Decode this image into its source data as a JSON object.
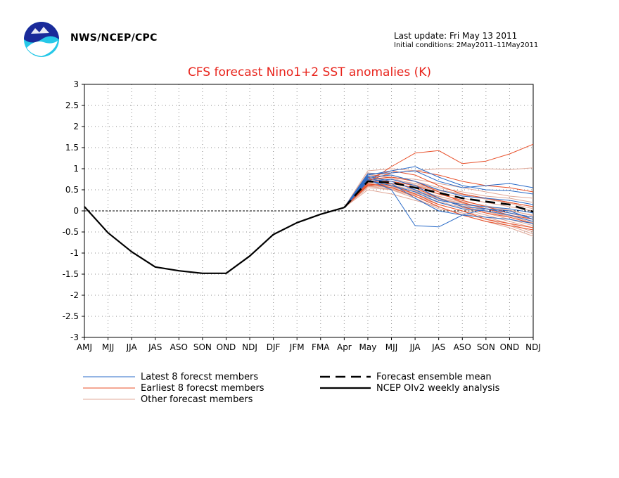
{
  "header": {
    "org": "NWS/NCEP/CPC",
    "last_update": "Last update: Fri May 13 2011",
    "initial_conditions": "Initial conditions: 2May2011–11May2011"
  },
  "colors": {
    "title": "#e8241c",
    "latest": "#2a6bc8",
    "earliest": "#e8502a",
    "other": "#e0a898",
    "analysis": "#000000",
    "grid": "#888888"
  },
  "chart_data": {
    "type": "line",
    "title": "CFS forecast Nino1+2 SST anomalies (K)",
    "categories": [
      "AMJ",
      "MJJ",
      "JJA",
      "JAS",
      "ASO",
      "SON",
      "OND",
      "NDJ",
      "DJF",
      "JFM",
      "FMA",
      "Apr",
      "May",
      "MJJ",
      "JJA",
      "JAS",
      "ASO",
      "SON",
      "OND",
      "NDJ"
    ],
    "ylim": [
      -3,
      3
    ],
    "yticks": [
      3,
      2.5,
      2,
      1.5,
      1,
      0.5,
      0,
      -0.5,
      -1,
      -1.5,
      -2,
      -2.5,
      -3
    ],
    "grid": true,
    "legend": [
      {
        "label": "Latest 8 forecst members",
        "kind": "latest"
      },
      {
        "label": "Earliest 8 forecst members",
        "kind": "earliest"
      },
      {
        "label": "Other forecast members",
        "kind": "other"
      },
      {
        "label": "Forecast ensemble mean",
        "kind": "mean"
      },
      {
        "label": "NCEP OIv2 weekly analysis",
        "kind": "analysis"
      }
    ],
    "analysis": {
      "x": [
        0,
        1,
        2,
        3,
        4,
        5,
        6,
        7,
        8,
        9,
        10,
        11
      ],
      "values": [
        0.1,
        -0.52,
        -0.97,
        -1.33,
        -1.42,
        -1.48,
        -1.48,
        -1.07,
        -0.56,
        -0.28,
        -0.08,
        0.08
      ]
    },
    "ensemble_mean": {
      "x": [
        11,
        12,
        13,
        14,
        15,
        16,
        17,
        18,
        19
      ],
      "values": [
        0.08,
        0.7,
        0.67,
        0.55,
        0.43,
        0.3,
        0.22,
        0.15,
        -0.02
      ]
    },
    "latest_members": [
      [
        0.08,
        0.85,
        0.95,
        1.05,
        0.8,
        0.6,
        0.5,
        0.48,
        0.4
      ],
      [
        0.08,
        0.8,
        0.85,
        0.7,
        0.5,
        0.35,
        0.3,
        0.25,
        0.15
      ],
      [
        0.08,
        0.75,
        0.5,
        -0.35,
        -0.38,
        -0.1,
        0.05,
        0.0,
        -0.2
      ],
      [
        0.08,
        0.7,
        0.75,
        0.6,
        0.3,
        0.1,
        0.05,
        -0.05,
        -0.15
      ],
      [
        0.08,
        0.78,
        0.65,
        0.3,
        0.0,
        -0.1,
        -0.15,
        -0.2,
        -0.3
      ],
      [
        0.08,
        0.88,
        0.9,
        0.95,
        0.7,
        0.55,
        0.6,
        0.65,
        0.55
      ],
      [
        0.08,
        0.72,
        0.6,
        0.45,
        0.2,
        0.05,
        0.0,
        -0.1,
        -0.25
      ],
      [
        0.08,
        0.82,
        0.7,
        0.5,
        0.25,
        0.15,
        0.1,
        0.05,
        -0.05
      ]
    ],
    "earliest_members": [
      [
        0.08,
        0.68,
        1.05,
        1.37,
        1.43,
        1.12,
        1.18,
        1.35,
        1.58
      ],
      [
        0.08,
        0.72,
        0.9,
        0.95,
        0.85,
        0.7,
        0.6,
        0.55,
        0.45
      ],
      [
        0.08,
        0.6,
        0.65,
        0.55,
        0.3,
        0.1,
        -0.05,
        -0.15,
        -0.3
      ],
      [
        0.08,
        0.75,
        0.8,
        0.7,
        0.45,
        0.2,
        0.05,
        -0.1,
        -0.2
      ],
      [
        0.08,
        0.65,
        0.55,
        0.35,
        0.1,
        -0.1,
        -0.25,
        -0.35,
        -0.45
      ],
      [
        0.08,
        0.7,
        0.7,
        0.6,
        0.4,
        0.25,
        0.1,
        -0.05,
        -0.15
      ],
      [
        0.08,
        0.62,
        0.6,
        0.4,
        0.15,
        0.0,
        -0.2,
        -0.3,
        -0.4
      ],
      [
        0.08,
        0.78,
        0.95,
        0.85,
        0.6,
        0.4,
        0.3,
        0.2,
        0.1
      ]
    ],
    "other_members": [
      [
        0.08,
        0.95,
        1.0,
        0.95,
        1.0,
        1.0,
        1.0,
        0.98,
        1.02
      ],
      [
        0.08,
        0.8,
        0.75,
        0.65,
        0.5,
        0.4,
        0.3,
        0.2,
        0.1
      ],
      [
        0.08,
        0.7,
        0.6,
        0.45,
        0.3,
        0.15,
        0.0,
        -0.15,
        -0.3
      ],
      [
        0.08,
        0.6,
        0.55,
        0.4,
        0.2,
        0.05,
        -0.1,
        -0.25,
        -0.4
      ],
      [
        0.08,
        0.5,
        0.4,
        0.25,
        0.1,
        -0.1,
        -0.25,
        -0.4,
        -0.6
      ],
      [
        0.08,
        0.9,
        0.85,
        0.7,
        0.55,
        0.45,
        0.35,
        0.3,
        0.2
      ],
      [
        0.08,
        0.75,
        0.7,
        0.6,
        0.45,
        0.3,
        0.2,
        0.1,
        0.0
      ],
      [
        0.08,
        0.65,
        0.6,
        0.5,
        0.35,
        0.2,
        0.05,
        -0.05,
        -0.2
      ],
      [
        0.08,
        0.55,
        0.5,
        0.35,
        0.15,
        0.0,
        -0.15,
        -0.3,
        -0.5
      ],
      [
        0.08,
        0.85,
        0.8,
        0.75,
        0.65,
        0.55,
        0.45,
        0.35,
        0.3
      ],
      [
        0.08,
        0.7,
        0.65,
        0.55,
        0.4,
        0.25,
        0.1,
        0.0,
        -0.1
      ],
      [
        0.08,
        0.6,
        0.5,
        0.3,
        0.05,
        -0.05,
        -0.2,
        -0.35,
        -0.55
      ],
      [
        0.08,
        0.78,
        0.7,
        0.6,
        0.5,
        0.4,
        0.3,
        0.2,
        0.1
      ],
      [
        0.08,
        0.68,
        0.62,
        0.48,
        0.3,
        0.18,
        0.05,
        -0.1,
        -0.25
      ],
      [
        0.08,
        0.58,
        0.52,
        0.38,
        0.22,
        0.08,
        -0.05,
        -0.2,
        -0.35
      ],
      [
        0.08,
        0.88,
        0.78,
        0.62,
        0.48,
        0.38,
        0.28,
        0.18,
        0.05
      ],
      [
        0.08,
        0.72,
        0.58,
        0.42,
        0.28,
        0.12,
        -0.02,
        -0.12,
        -0.28
      ],
      [
        0.08,
        0.64,
        0.56,
        0.46,
        0.34,
        0.22,
        0.12,
        0.02,
        -0.12
      ]
    ]
  }
}
